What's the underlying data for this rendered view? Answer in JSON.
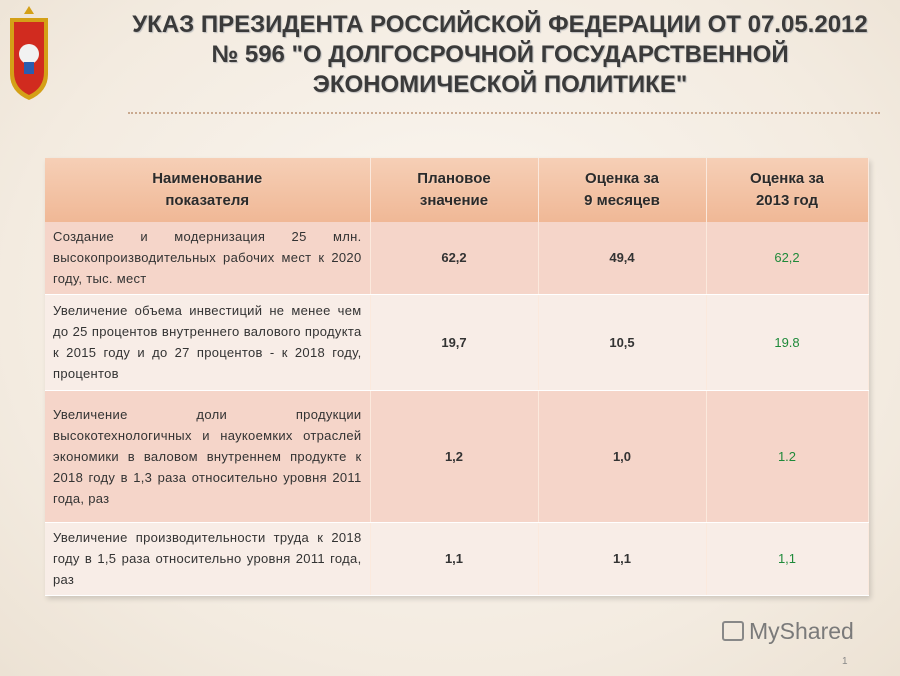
{
  "header": {
    "title_lines": [
      "УКАЗ ПРЕЗИДЕНТА РОССИЙСКОЙ ФЕДЕРАЦИИ ОТ 07.05.2012",
      "№ 596 \"О ДОЛГОСРОЧНОЙ ГОСУДАРСТВЕННОЙ",
      "ЭКОНОМИЧЕСКОЙ ПОЛИТИКЕ\""
    ]
  },
  "table": {
    "columns": [
      [
        "Наименование",
        "показателя"
      ],
      [
        "Плановое",
        "значение"
      ],
      [
        "Оценка за",
        "9 месяцев"
      ],
      [
        "Оценка за",
        "2013 год"
      ]
    ],
    "rows": [
      [
        "Создание и модернизация 25 млн. высокопроизводительных рабочих мест к 2020 году, тыс. мест",
        "62,2",
        "49,4",
        "62,2"
      ],
      [
        "Увеличение объема инвестиций не менее чем до 25 процентов внутреннего валового продукта к 2015 году и до 27 процентов - к 2018 году, процентов",
        "19,7",
        "10,5",
        "19.8"
      ],
      [
        "Увеличение доли продукции высокотехнологичных и наукоемких отраслей экономики в валовом внутреннем продукте к 2018 году в 1,3 раза относительно уровня 2011 года, раз",
        "1,2",
        "1,0",
        "1.2"
      ],
      [
        "Увеличение производительности труда к 2018 году в 1,5 раза относительно уровня 2011 года, раз",
        "1,1",
        "1,1",
        "1,1"
      ]
    ]
  },
  "footer": {
    "watermark": "MyShared",
    "page": "1"
  }
}
